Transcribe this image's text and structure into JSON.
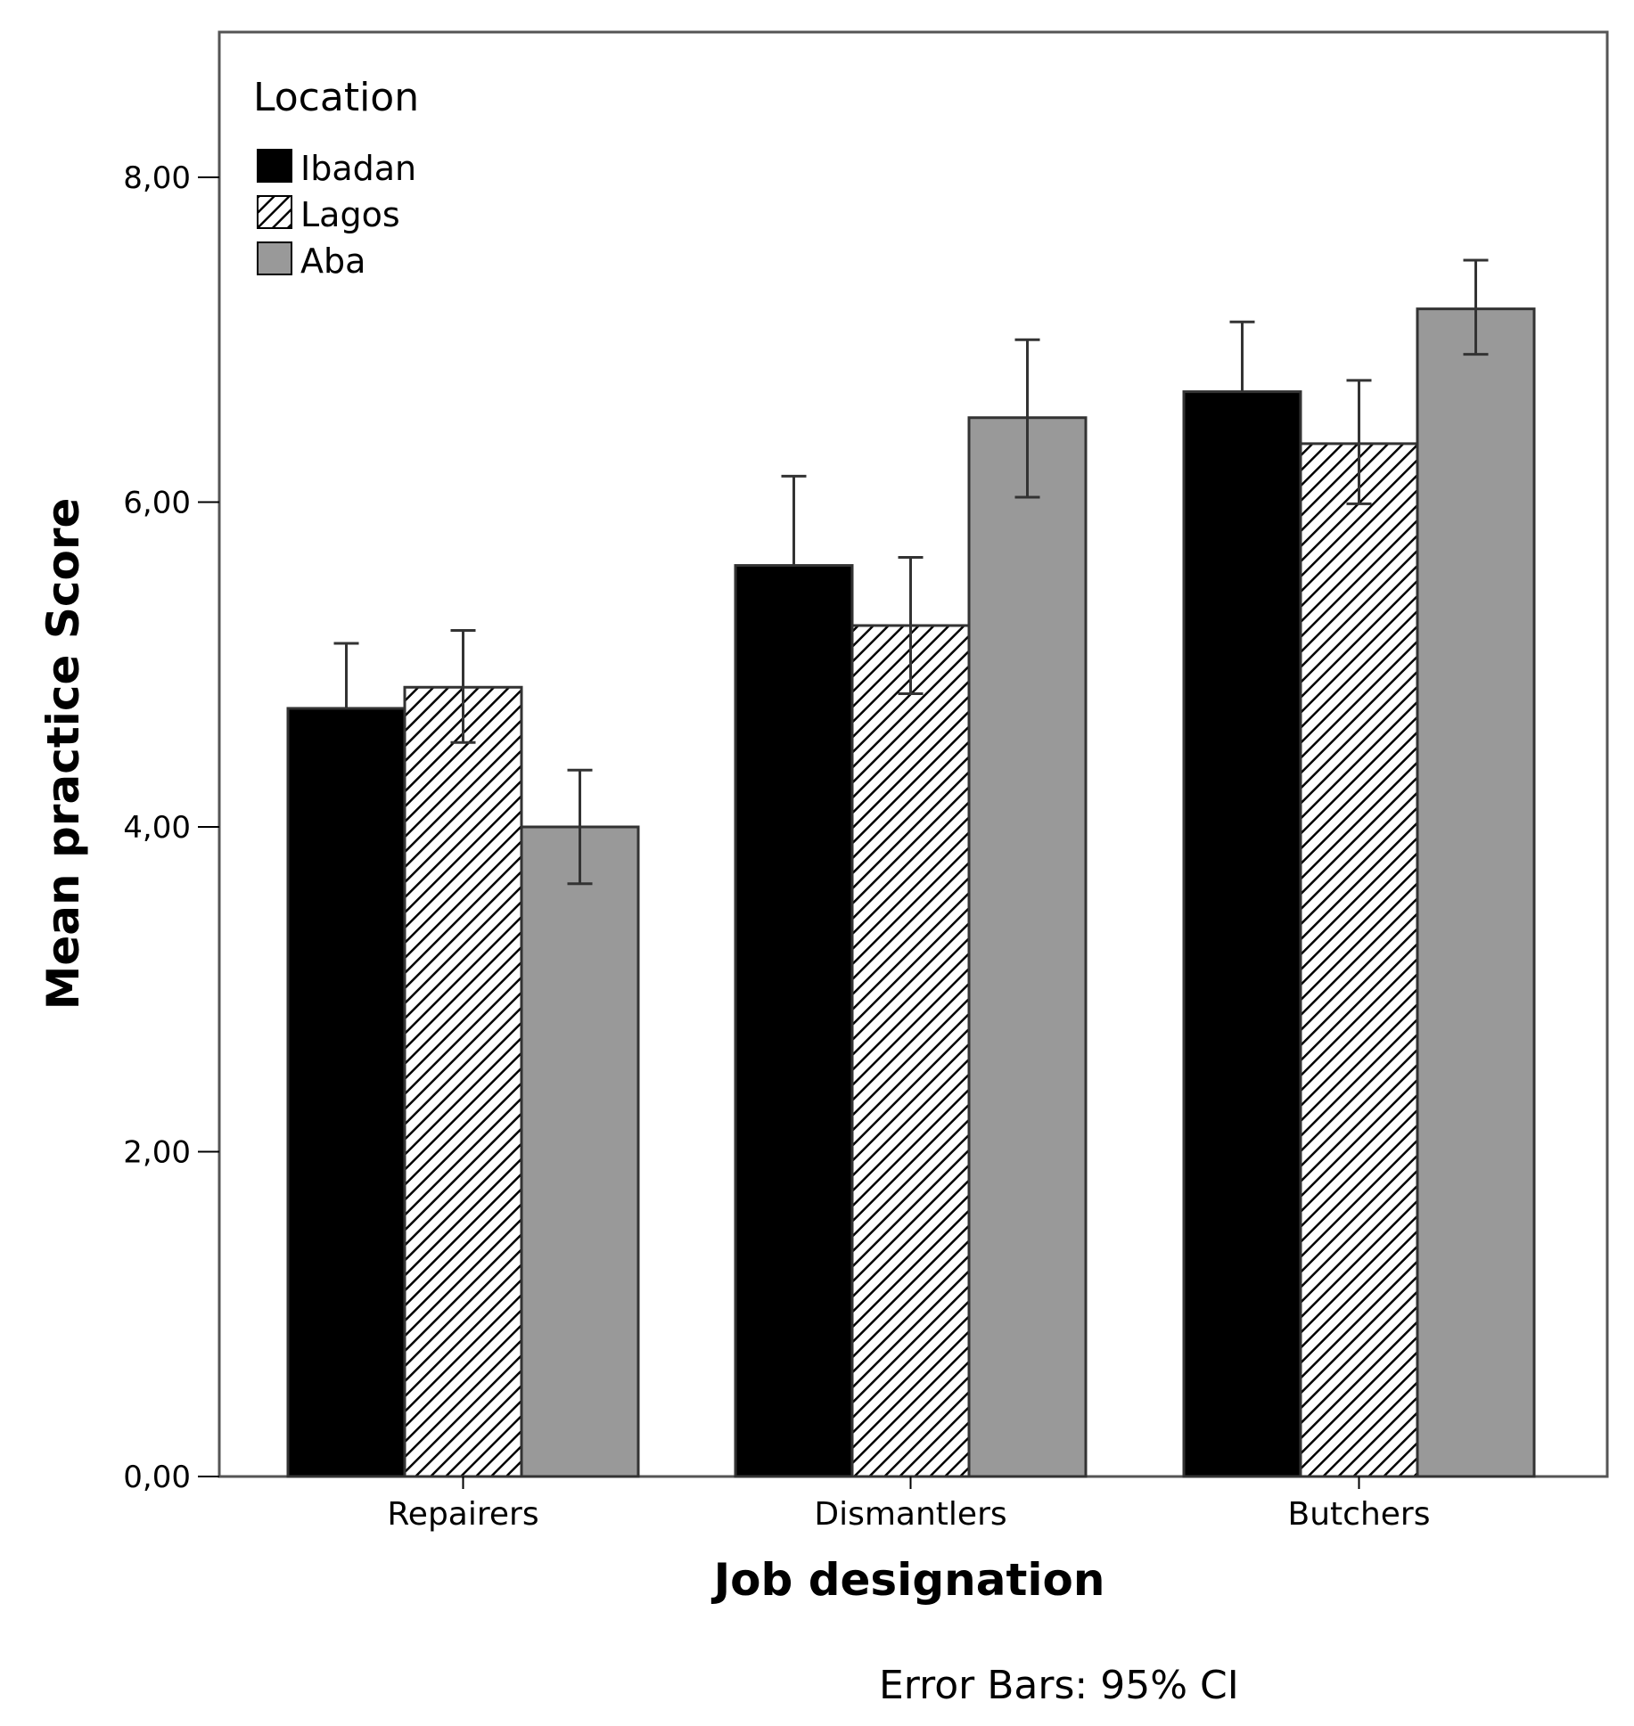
{
  "chart_data": {
    "type": "bar",
    "categories": [
      "Repairers",
      "Dismantlers",
      "Butchers"
    ],
    "xlabel": "Job designation",
    "ylabel": "Mean practice Score",
    "ylim": [
      0,
      8.9
    ],
    "yticks": [
      "0,00",
      "2,00",
      "4,00",
      "6,00",
      "8,00"
    ],
    "ytick_values": [
      0,
      2,
      4,
      6,
      8
    ],
    "legend": {
      "title": "Location",
      "placement": "top-left"
    },
    "series": [
      {
        "name": "Ibadan",
        "color": "#000000",
        "fill": "solid",
        "values": [
          4.73,
          5.61,
          6.68
        ],
        "ci_low": [
          4.73,
          5.61,
          6.68
        ],
        "ci_high": [
          5.13,
          6.16,
          7.11
        ]
      },
      {
        "name": "Lagos",
        "color": "#000000",
        "fill": "hatched",
        "values": [
          4.86,
          5.24,
          6.36
        ],
        "ci_low": [
          4.52,
          4.82,
          5.99
        ],
        "ci_high": [
          5.21,
          5.66,
          6.75
        ]
      },
      {
        "name": "Aba",
        "color": "#999999",
        "fill": "solid",
        "values": [
          4.0,
          6.52,
          7.19
        ],
        "ci_low": [
          3.65,
          6.03,
          6.91
        ],
        "ci_high": [
          4.35,
          7.0,
          7.49
        ]
      }
    ],
    "note": "Error Bars: 95% CI",
    "grid": false
  }
}
